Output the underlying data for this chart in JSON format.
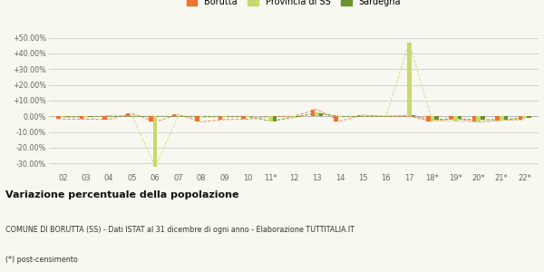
{
  "categories": [
    "02",
    "03",
    "04",
    "05",
    "06",
    "07",
    "08",
    "09",
    "10",
    "11*",
    "12",
    "13",
    "14",
    "15",
    "16",
    "17",
    "18*",
    "19*",
    "20*",
    "21*",
    "22*"
  ],
  "borutta": [
    -1.8,
    -1.8,
    -1.9,
    1.9,
    -3.5,
    1.2,
    -3.5,
    -2.0,
    -1.8,
    0.0,
    0.0,
    4.5,
    -3.0,
    0.8,
    0.0,
    0.0,
    -3.0,
    -1.5,
    -3.5,
    -2.5,
    -2.0
  ],
  "provincia_ss": [
    -0.5,
    -0.5,
    0.5,
    0.5,
    -32.0,
    0.0,
    -0.5,
    -0.5,
    -0.5,
    -3.0,
    -1.0,
    2.5,
    -0.3,
    0.0,
    0.0,
    47.0,
    -3.0,
    -3.0,
    -3.5,
    -2.5,
    -1.0
  ],
  "sardegna": [
    -0.3,
    -0.2,
    0.0,
    0.0,
    0.0,
    0.0,
    0.0,
    0.0,
    0.0,
    -3.0,
    -0.5,
    2.0,
    0.0,
    0.0,
    0.0,
    0.5,
    -2.0,
    -1.5,
    -2.0,
    -2.0,
    -1.0
  ],
  "borutta_color": "#f07030",
  "provincia_color": "#c8d870",
  "sardegna_color": "#6a9030",
  "title": "Variazione percentuale della popolazione",
  "subtitle": "COMUNE DI BORUTTA (SS) - Dati ISTAT al 31 dicembre di ogni anno - Elaborazione TUTTITALIA.IT",
  "footnote": "(*) post-censimento",
  "ylim": [
    -35,
    55
  ],
  "yticks": [
    -30,
    -20,
    -10,
    0,
    10,
    20,
    30,
    40,
    50
  ],
  "ytick_labels": [
    "-30.00%",
    "-20.00%",
    "-10.00%",
    "0.00%",
    "+10.00%",
    "+20.00%",
    "+30.00%",
    "+40.00%",
    "+50.00%"
  ],
  "background_color": "#f8f8f0",
  "grid_color": "#cccccc",
  "bar_width": 0.18
}
